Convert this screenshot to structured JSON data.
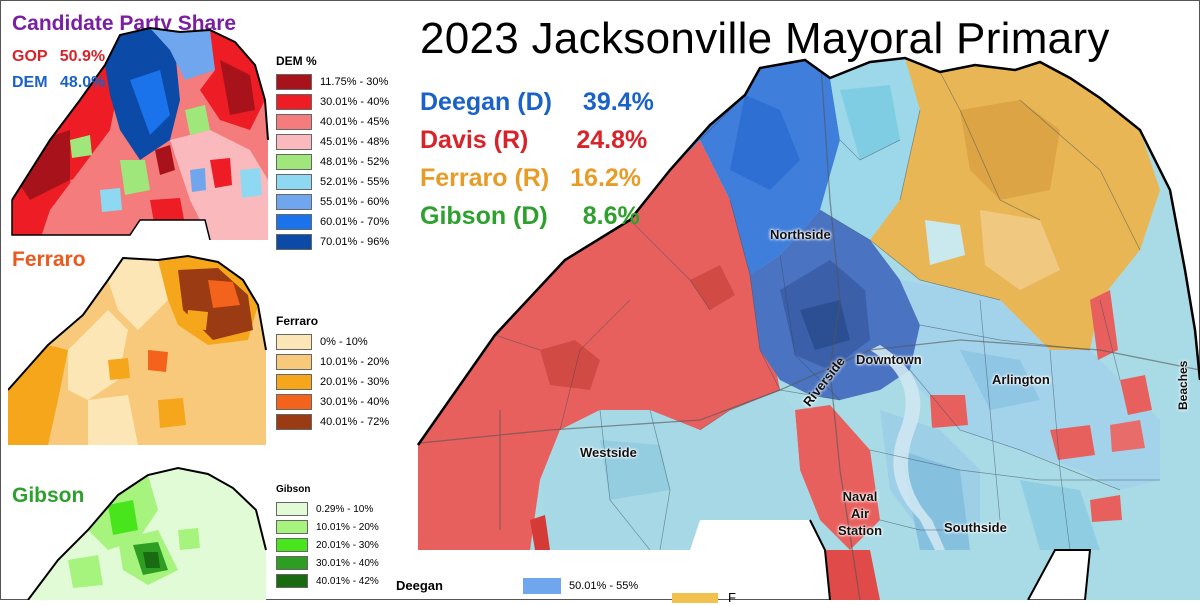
{
  "title": "2023 Jacksonville Mayoral Primary",
  "candidates": [
    {
      "name": "Deegan (D)",
      "pct": "39.4%",
      "color": "#1a62c8"
    },
    {
      "name": "Davis (R)",
      "pct": "24.8%",
      "color": "#d8232a"
    },
    {
      "name": "Ferraro (R)",
      "pct": "16.2%",
      "color": "#e89c28"
    },
    {
      "name": "Gibson (D)",
      "pct": "8.6%",
      "color": "#2ea02e"
    }
  ],
  "party_share": {
    "title": "Candidate Party Share",
    "title_color": "#7a1fa2",
    "gop_label": "GOP",
    "gop_pct": "50.9%",
    "gop_color": "#d8232a",
    "dem_label": "DEM",
    "dem_pct": "48.0%",
    "dem_color": "#1a62c8",
    "legend_title": "DEM %",
    "legend": [
      {
        "label": "11.75% - 30%",
        "color": "#a8121a"
      },
      {
        "label": "30.01% - 40%",
        "color": "#ee1c24"
      },
      {
        "label": "40.01% - 45%",
        "color": "#f47c7c"
      },
      {
        "label": "45.01% - 48%",
        "color": "#f9b9bd"
      },
      {
        "label": "48.01% - 52%",
        "color": "#9fe77a"
      },
      {
        "label": "52.01% - 55%",
        "color": "#8fd8f2"
      },
      {
        "label": "55.01% - 60%",
        "color": "#6fa6ee"
      },
      {
        "label": "60.01% - 70%",
        "color": "#1a73ea"
      },
      {
        "label": "70.01% - 96%",
        "color": "#0b4aa6"
      }
    ]
  },
  "ferraro": {
    "title": "Ferraro",
    "title_color": "#ea5a1c",
    "legend_title": "Ferraro",
    "legend": [
      {
        "label": "0% - 10%",
        "color": "#fde6b6"
      },
      {
        "label": "10.01% - 20%",
        "color": "#f8c97a"
      },
      {
        "label": "20.01% - 30%",
        "color": "#f6a61a"
      },
      {
        "label": "30.01% - 40%",
        "color": "#f4631c"
      },
      {
        "label": "40.01% - 72%",
        "color": "#9b3b13"
      }
    ]
  },
  "gibson": {
    "title": "Gibson",
    "title_color": "#2ea02e",
    "legend_title": "Gibson",
    "legend": [
      {
        "label": "0.29% - 10%",
        "color": "#e2fbd7"
      },
      {
        "label": "10.01% - 20%",
        "color": "#a6f37e"
      },
      {
        "label": "20.01% - 30%",
        "color": "#48e41c"
      },
      {
        "label": "30.01% - 40%",
        "color": "#2e9e22"
      },
      {
        "label": "40.01% - 42%",
        "color": "#196b12"
      }
    ]
  },
  "bottom_legend": {
    "deegan_title": "Deegan",
    "deegan_item": {
      "label": "50.01% - 55%",
      "color": "#6fa6ee"
    },
    "ferraro_item_color": "#f2c04c",
    "ferraro_item_label": "F"
  },
  "map_labels": {
    "northside": "Northside",
    "downtown": "Downtown",
    "riverside": "Riverside",
    "arlington": "Arlington",
    "westside": "Westside",
    "naval_air_station": [
      "Naval",
      "Air",
      "Station"
    ],
    "southside": "Southside",
    "beaches": "Beaches"
  }
}
